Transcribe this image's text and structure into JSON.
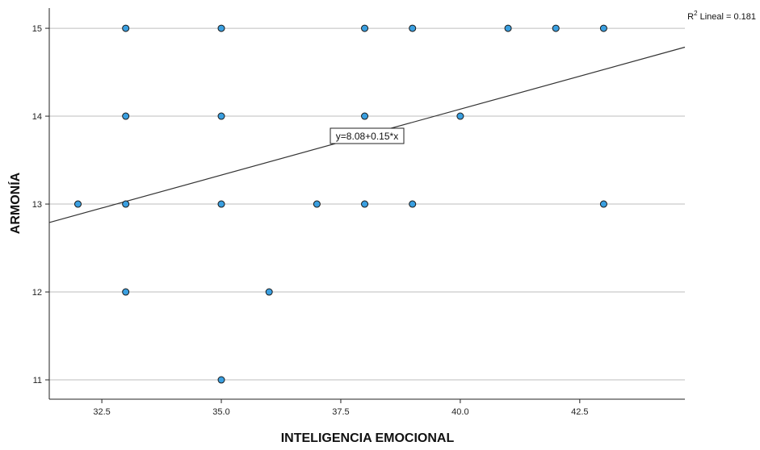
{
  "chart_data": {
    "type": "scatter",
    "title": "",
    "xlabel": "INTELIGENCIA EMOCIONAL",
    "ylabel": "ARMONÍA",
    "xlim": [
      31.4,
      44.7
    ],
    "ylim": [
      10.78,
      15.23
    ],
    "x_ticks": [
      32.5,
      35.0,
      37.5,
      40.0,
      42.5
    ],
    "x_tick_labels": [
      "32.5",
      "35.0",
      "37.5",
      "40.0",
      "42.5"
    ],
    "y_ticks": [
      11,
      12,
      13,
      14,
      15
    ],
    "y_tick_labels": [
      "11",
      "12",
      "13",
      "14",
      "15"
    ],
    "grid": "horizontal",
    "point_color": "#3a9fe0",
    "point_edge_color": "#1a1a1a",
    "gridline_color": "#bdbdbd",
    "line_color": "#333333",
    "points": [
      {
        "x": 32,
        "y": 13
      },
      {
        "x": 33,
        "y": 15
      },
      {
        "x": 33,
        "y": 14
      },
      {
        "x": 33,
        "y": 13
      },
      {
        "x": 33,
        "y": 12
      },
      {
        "x": 35,
        "y": 15
      },
      {
        "x": 35,
        "y": 14
      },
      {
        "x": 35,
        "y": 13
      },
      {
        "x": 35,
        "y": 11
      },
      {
        "x": 36,
        "y": 12
      },
      {
        "x": 37,
        "y": 13
      },
      {
        "x": 38,
        "y": 15
      },
      {
        "x": 38,
        "y": 14
      },
      {
        "x": 38,
        "y": 13
      },
      {
        "x": 39,
        "y": 15
      },
      {
        "x": 39,
        "y": 13
      },
      {
        "x": 40,
        "y": 14
      },
      {
        "x": 41,
        "y": 15
      },
      {
        "x": 42,
        "y": 15
      },
      {
        "x": 43,
        "y": 15
      },
      {
        "x": 43,
        "y": 13
      }
    ],
    "fit_line": {
      "intercept": 8.08,
      "slope": 0.15
    },
    "fit_equation_label": "y=8.08+0.15*x",
    "r2_label": {
      "prefix": "R",
      "sup": "2",
      "text": " Lineal = 0.181"
    }
  }
}
